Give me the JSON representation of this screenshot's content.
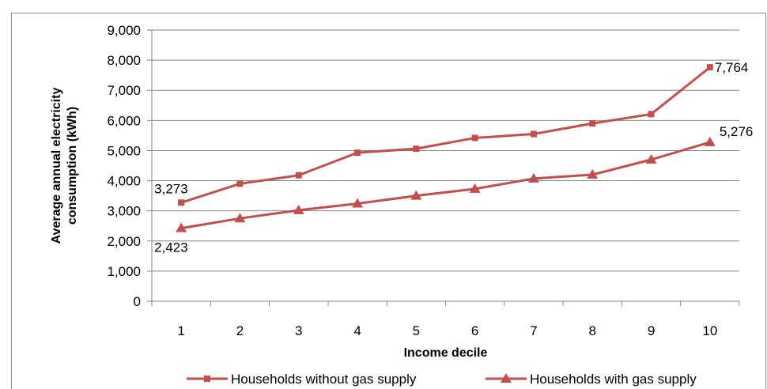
{
  "chart_data": {
    "type": "line",
    "title": "",
    "xlabel": "Income decile",
    "ylabel": "Average annual electricity consumption (kWh)",
    "ylabel_lines": [
      "Average annual electricity",
      "consumption (kWh)"
    ],
    "categories": [
      "1",
      "2",
      "3",
      "4",
      "5",
      "6",
      "7",
      "8",
      "9",
      "10"
    ],
    "ylim": [
      0,
      9000
    ],
    "yticks": [
      0,
      1000,
      2000,
      3000,
      4000,
      5000,
      6000,
      7000,
      8000,
      9000
    ],
    "ytick_labels": [
      "0",
      "1,000",
      "2,000",
      "3,000",
      "4,000",
      "5,000",
      "6,000",
      "7,000",
      "8,000",
      "9,000"
    ],
    "grid": true,
    "legend_position": "bottom",
    "series": [
      {
        "name": "Households without gas supply",
        "marker": "square",
        "color": "#c0504d",
        "values": [
          3273,
          3900,
          4180,
          4930,
          5060,
          5420,
          5550,
          5900,
          6210,
          7764
        ],
        "labels": [
          {
            "index": 0,
            "text": "3,273"
          },
          {
            "index": 9,
            "text": "7,764"
          }
        ]
      },
      {
        "name": "Households with gas supply",
        "marker": "triangle",
        "color": "#c0504d",
        "values": [
          2423,
          2750,
          3020,
          3240,
          3500,
          3730,
          4070,
          4200,
          4700,
          5276
        ],
        "labels": [
          {
            "index": 0,
            "text": "2,423"
          },
          {
            "index": 9,
            "text": "5,276"
          }
        ]
      }
    ]
  }
}
